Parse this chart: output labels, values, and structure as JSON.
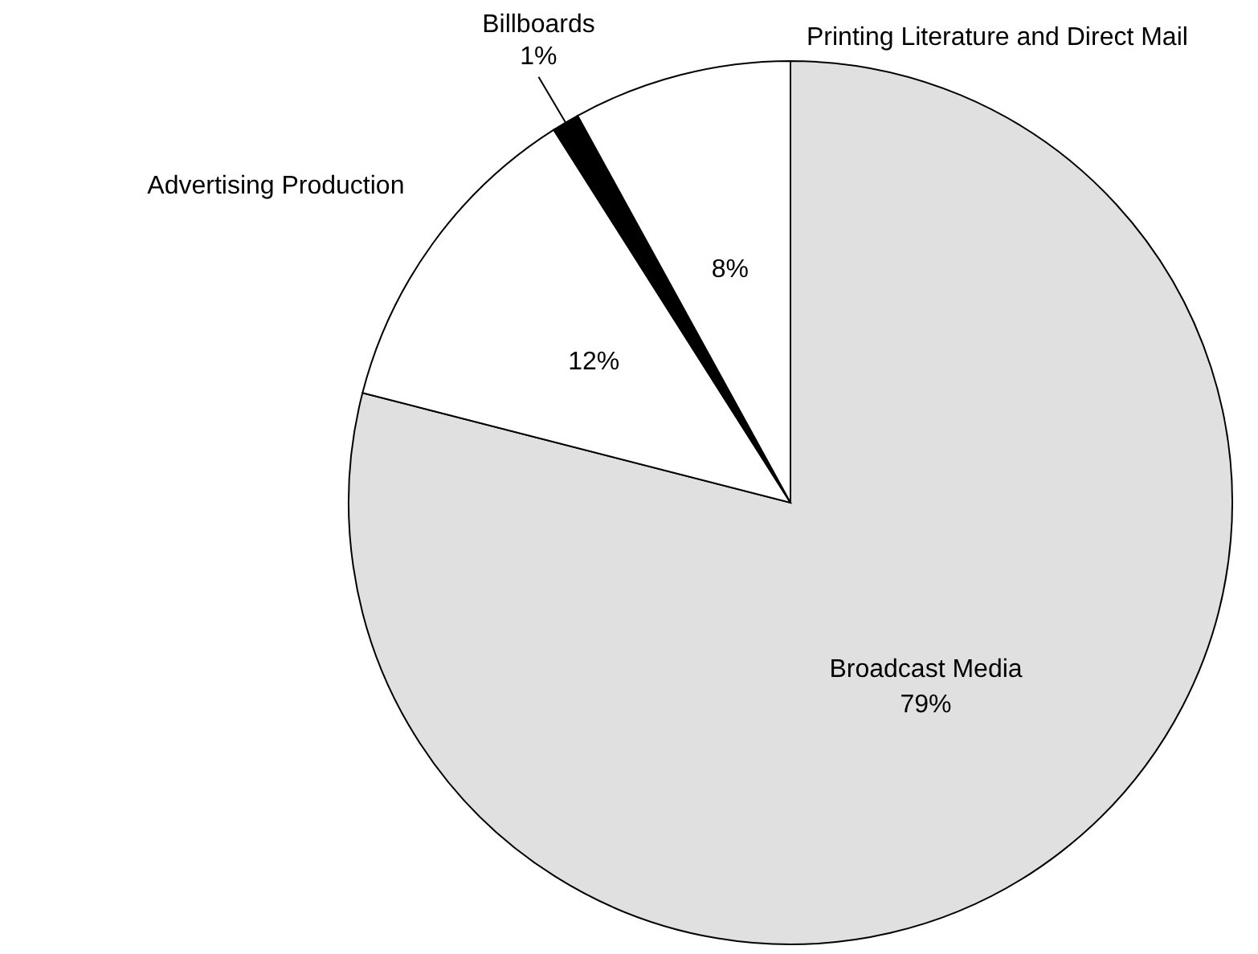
{
  "chart_data": {
    "type": "pie",
    "categories": [
      "Broadcast Media",
      "Advertising Production",
      "Billboards",
      "Printing Literature and Direct Mail"
    ],
    "values": [
      79,
      12,
      1,
      8
    ],
    "value_labels": [
      "79%",
      "12%",
      "1%",
      "8%"
    ],
    "colors": [
      "#e0e0e0",
      "#ffffff",
      "#000000",
      "#ffffff"
    ]
  }
}
